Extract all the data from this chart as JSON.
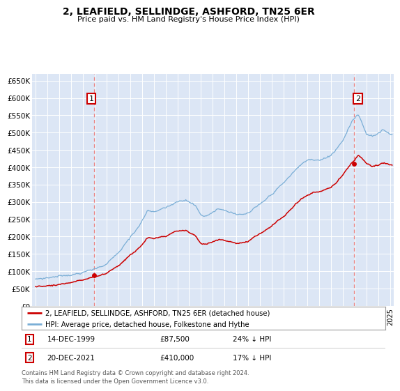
{
  "title": "2, LEAFIELD, SELLINDGE, ASHFORD, TN25 6ER",
  "subtitle": "Price paid vs. HM Land Registry's House Price Index (HPI)",
  "plot_bg_color": "#dce6f5",
  "ylim": [
    0,
    670000
  ],
  "yticks": [
    0,
    50000,
    100000,
    150000,
    200000,
    250000,
    300000,
    350000,
    400000,
    450000,
    500000,
    550000,
    600000,
    650000
  ],
  "ytick_labels": [
    "£0",
    "£50K",
    "£100K",
    "£150K",
    "£200K",
    "£250K",
    "£300K",
    "£350K",
    "£400K",
    "£450K",
    "£500K",
    "£550K",
    "£600K",
    "£650K"
  ],
  "xlim_start": 1994.7,
  "xlim_end": 2025.3,
  "sale1_x": 1999.96,
  "sale1_y": 87500,
  "sale1_label": "1",
  "sale1_date": "14-DEC-1999",
  "sale1_price": "£87,500",
  "sale1_hpi": "24% ↓ HPI",
  "sale2_x": 2021.97,
  "sale2_y": 410000,
  "sale2_label": "2",
  "sale2_date": "20-DEC-2021",
  "sale2_price": "£410,000",
  "sale2_hpi": "17% ↓ HPI",
  "legend_line1": "2, LEAFIELD, SELLINDGE, ASHFORD, TN25 6ER (detached house)",
  "legend_line2": "HPI: Average price, detached house, Folkestone and Hythe",
  "footer": "Contains HM Land Registry data © Crown copyright and database right 2024.\nThis data is licensed under the Open Government Licence v3.0.",
  "sale_color": "#cc0000",
  "hpi_color": "#7aaed6",
  "dashed_line_color": "#e88080"
}
